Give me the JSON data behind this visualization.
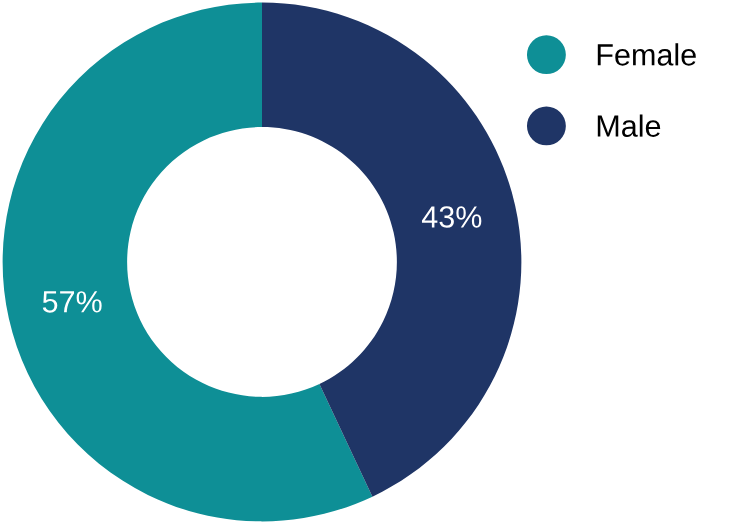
{
  "chart_data": {
    "type": "donut",
    "categories": [
      "Female",
      "Male"
    ],
    "values": [
      57,
      43
    ],
    "colors": [
      "#0e8f96",
      "#1f3566"
    ],
    "value_labels": [
      "57%",
      "43%"
    ],
    "legend": "top right"
  }
}
